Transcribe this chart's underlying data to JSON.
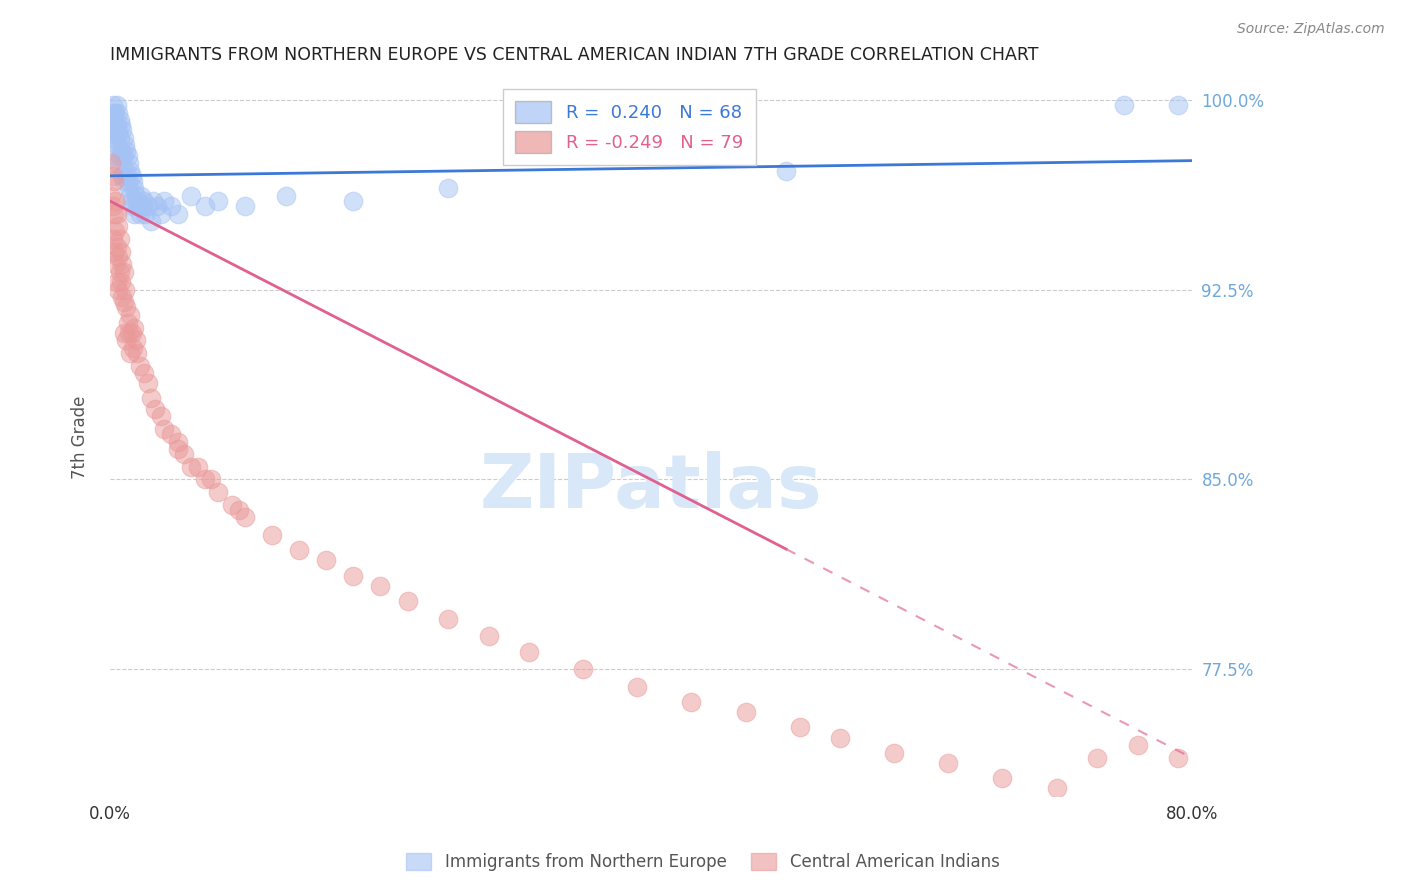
{
  "title": "IMMIGRANTS FROM NORTHERN EUROPE VS CENTRAL AMERICAN INDIAN 7TH GRADE CORRELATION CHART",
  "source": "Source: ZipAtlas.com",
  "ylabel": "7th Grade",
  "xlim": [
    0.0,
    0.8
  ],
  "ylim": [
    0.725,
    1.008
  ],
  "yticks": [
    0.775,
    0.85,
    0.925,
    1.0
  ],
  "ytick_labels": [
    "77.5%",
    "85.0%",
    "92.5%",
    "100.0%"
  ],
  "xticks": [
    0.0,
    0.1,
    0.2,
    0.3,
    0.4,
    0.5,
    0.6,
    0.7,
    0.8
  ],
  "xtick_labels": [
    "0.0%",
    "",
    "",
    "",
    "",
    "",
    "",
    "",
    "80.0%"
  ],
  "blue_R": 0.24,
  "blue_N": 68,
  "pink_R": -0.249,
  "pink_N": 79,
  "blue_color": "#a4c2f4",
  "pink_color": "#ea9999",
  "blue_line_color": "#3c78d8",
  "pink_line_color": "#e06090",
  "axis_label_color": "#555555",
  "tick_color_right": "#6fa8dc",
  "grid_color": "#cccccc",
  "watermark_color": "#d8e8f8",
  "blue_scatter_x": [
    0.001,
    0.002,
    0.002,
    0.003,
    0.003,
    0.003,
    0.004,
    0.004,
    0.004,
    0.005,
    0.005,
    0.005,
    0.006,
    0.006,
    0.006,
    0.007,
    0.007,
    0.007,
    0.008,
    0.008,
    0.009,
    0.009,
    0.009,
    0.01,
    0.01,
    0.01,
    0.011,
    0.011,
    0.012,
    0.012,
    0.013,
    0.013,
    0.014,
    0.014,
    0.015,
    0.015,
    0.016,
    0.016,
    0.017,
    0.017,
    0.018,
    0.018,
    0.019,
    0.02,
    0.021,
    0.022,
    0.023,
    0.024,
    0.025,
    0.026,
    0.028,
    0.03,
    0.032,
    0.035,
    0.038,
    0.04,
    0.045,
    0.05,
    0.06,
    0.07,
    0.08,
    0.1,
    0.13,
    0.18,
    0.25,
    0.5,
    0.75,
    0.79
  ],
  "blue_scatter_y": [
    0.99,
    0.998,
    0.985,
    0.995,
    0.988,
    0.992,
    0.995,
    0.985,
    0.978,
    0.998,
    0.99,
    0.982,
    0.995,
    0.987,
    0.975,
    0.992,
    0.985,
    0.978,
    0.99,
    0.98,
    0.988,
    0.978,
    0.97,
    0.985,
    0.978,
    0.968,
    0.982,
    0.972,
    0.98,
    0.97,
    0.978,
    0.968,
    0.975,
    0.965,
    0.972,
    0.962,
    0.97,
    0.96,
    0.968,
    0.958,
    0.965,
    0.955,
    0.962,
    0.96,
    0.958,
    0.955,
    0.962,
    0.958,
    0.96,
    0.955,
    0.958,
    0.952,
    0.96,
    0.958,
    0.955,
    0.96,
    0.958,
    0.955,
    0.962,
    0.958,
    0.96,
    0.958,
    0.962,
    0.96,
    0.965,
    0.972,
    0.998,
    0.998
  ],
  "pink_scatter_x": [
    0.001,
    0.001,
    0.002,
    0.002,
    0.002,
    0.003,
    0.003,
    0.003,
    0.004,
    0.004,
    0.004,
    0.005,
    0.005,
    0.005,
    0.006,
    0.006,
    0.006,
    0.007,
    0.007,
    0.008,
    0.008,
    0.009,
    0.009,
    0.01,
    0.01,
    0.01,
    0.011,
    0.012,
    0.012,
    0.013,
    0.014,
    0.015,
    0.015,
    0.016,
    0.017,
    0.018,
    0.019,
    0.02,
    0.022,
    0.025,
    0.028,
    0.03,
    0.033,
    0.038,
    0.04,
    0.045,
    0.05,
    0.055,
    0.06,
    0.07,
    0.08,
    0.09,
    0.1,
    0.12,
    0.14,
    0.16,
    0.18,
    0.2,
    0.22,
    0.25,
    0.28,
    0.31,
    0.35,
    0.39,
    0.43,
    0.47,
    0.51,
    0.54,
    0.58,
    0.62,
    0.66,
    0.7,
    0.73,
    0.76,
    0.79,
    0.05,
    0.065,
    0.075,
    0.095
  ],
  "pink_scatter_y": [
    0.975,
    0.962,
    0.97,
    0.958,
    0.945,
    0.968,
    0.955,
    0.94,
    0.96,
    0.948,
    0.935,
    0.955,
    0.942,
    0.928,
    0.95,
    0.938,
    0.925,
    0.945,
    0.932,
    0.94,
    0.928,
    0.935,
    0.922,
    0.932,
    0.92,
    0.908,
    0.925,
    0.918,
    0.905,
    0.912,
    0.908,
    0.915,
    0.9,
    0.908,
    0.902,
    0.91,
    0.905,
    0.9,
    0.895,
    0.892,
    0.888,
    0.882,
    0.878,
    0.875,
    0.87,
    0.868,
    0.865,
    0.86,
    0.855,
    0.85,
    0.845,
    0.84,
    0.835,
    0.828,
    0.822,
    0.818,
    0.812,
    0.808,
    0.802,
    0.795,
    0.788,
    0.782,
    0.775,
    0.768,
    0.762,
    0.758,
    0.752,
    0.748,
    0.742,
    0.738,
    0.732,
    0.728,
    0.74,
    0.745,
    0.74,
    0.862,
    0.855,
    0.85,
    0.838
  ]
}
